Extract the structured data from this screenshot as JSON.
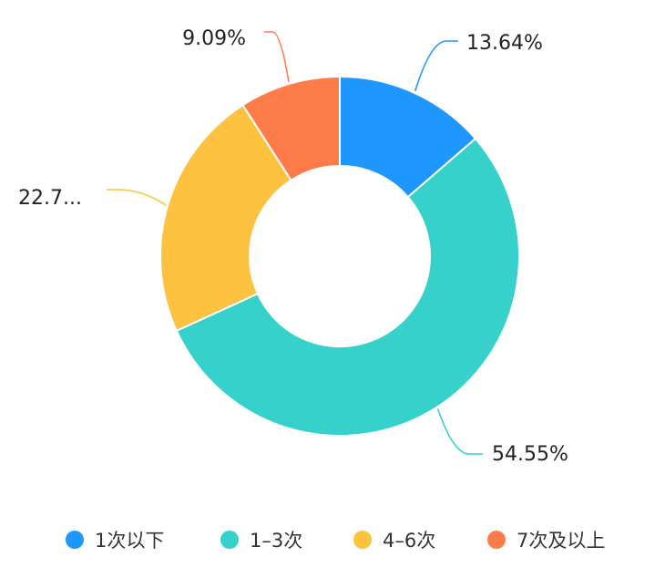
{
  "chart_data": {
    "type": "pie",
    "variant": "donut",
    "categories": [
      "1次以下",
      "1–3次",
      "4–6次",
      "7次及以上"
    ],
    "values": [
      13.64,
      54.55,
      22.73,
      9.09
    ],
    "data_labels": [
      "13.64%",
      "54.55%",
      "22.7...",
      "9.09%"
    ],
    "colors": [
      "#1e97ff",
      "#36d1cb",
      "#fdc23f",
      "#fe7b4a"
    ],
    "legend_position": "bottom",
    "start_angle_deg": 0,
    "direction": "clockwise"
  }
}
